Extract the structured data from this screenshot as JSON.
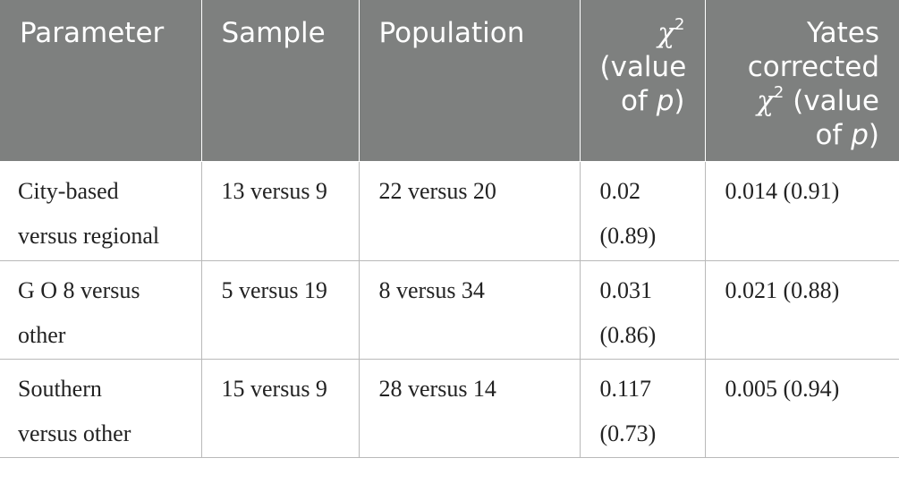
{
  "table": {
    "headers": {
      "parameter": "Parameter",
      "sample": "Sample",
      "population": "Population",
      "chi_symbol": "χ",
      "chi_exp": "2",
      "chi_line2": "(value",
      "chi_line3_pre": "of ",
      "p_symbol": "p",
      "chi_line3_post": ")",
      "yates_line1": "Yates",
      "yates_line2": "corrected",
      "yates_chi_symbol": "χ",
      "yates_chi_exp": "2",
      "yates_line3_post": " (value",
      "yates_line4_pre": "of ",
      "yates_p_symbol": "p",
      "yates_line4_post": ")"
    },
    "rows": [
      {
        "parameter_line1": "City-based",
        "parameter_line2": "versus regional",
        "sample": "13 versus 9",
        "population": "22 versus 20",
        "chi_line1": "0.02",
        "chi_line2": "(0.89)",
        "yates": "0.014 (0.91)"
      },
      {
        "parameter_line1": "G O 8 versus",
        "parameter_line2": "other",
        "sample": "5 versus 19",
        "population": "8 versus 34",
        "chi_line1": "0.031",
        "chi_line2": "(0.86)",
        "yates": "0.021 (0.88)"
      },
      {
        "parameter_line1": "Southern",
        "parameter_line2": "versus other",
        "sample": "15 versus 9",
        "population": "28 versus 14",
        "chi_line1": "0.117",
        "chi_line2": "(0.73)",
        "yates": "0.005 (0.94)"
      }
    ]
  }
}
